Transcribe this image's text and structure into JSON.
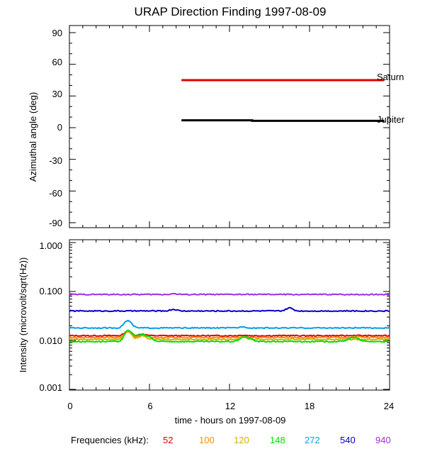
{
  "chart_data": [
    {
      "type": "line",
      "title": "URAP Direction Finding  1997-08-09",
      "ylabel": "Azimuthal angle (deg)",
      "xlim": [
        0,
        24
      ],
      "ylim": [
        -95,
        95
      ],
      "yticks": [
        90,
        60,
        30,
        0,
        -30,
        -60,
        -90
      ],
      "ytick_labels": [
        "90",
        "60",
        "30",
        "0",
        "-30",
        "-60",
        "-90"
      ],
      "series": [
        {
          "name": "Saturn",
          "color": "#e00000",
          "x": [
            8.4,
            23.6
          ],
          "y": [
            45,
            45
          ]
        },
        {
          "name": "Jupiter",
          "color": "#000000",
          "x": [
            8.4,
            13.7,
            13.7,
            23.6
          ],
          "y": [
            7,
            7,
            6.5,
            6.5
          ]
        }
      ]
    },
    {
      "type": "line",
      "scale": "log",
      "ylabel": "Intensity (microvolt/sqrt(Hz))",
      "xlabel": "time - hours on 1997-08-09",
      "xlim": [
        0,
        24
      ],
      "xticks": [
        0,
        6,
        12,
        18,
        24
      ],
      "xtick_labels": [
        "0",
        "6",
        "12",
        "18",
        "24"
      ],
      "ylim": [
        0.001,
        1.2
      ],
      "yticks": [
        1.0,
        0.1,
        0.01,
        0.001
      ],
      "ytick_labels": [
        "1.000",
        "0.100",
        "0.010",
        "0.001"
      ],
      "series": [
        {
          "name": "52",
          "color": "#e00000",
          "level": 0.0125,
          "features": [
            [
              4.4,
              0.0155
            ],
            [
              5.5,
              0.0135
            ],
            [
              13,
              0.0128
            ],
            [
              16.5,
              0.0126
            ],
            [
              21.5,
              0.0127
            ]
          ]
        },
        {
          "name": "100",
          "color": "#ff8c00",
          "level": 0.0115,
          "features": [
            [
              4.4,
              0.015
            ],
            [
              5.5,
              0.013
            ],
            [
              21.5,
              0.0121
            ]
          ]
        },
        {
          "name": "120",
          "color": "#d4b000",
          "level": 0.0105,
          "features": [
            [
              4.4,
              0.0155
            ],
            [
              5.5,
              0.0125
            ],
            [
              13,
              0.0118
            ]
          ]
        },
        {
          "name": "148",
          "color": "#00e000",
          "level": 0.0095,
          "features": [
            [
              4.4,
              0.016
            ],
            [
              5.0,
              0.012
            ],
            [
              5.5,
              0.0125
            ],
            [
              6.0,
              0.0115
            ],
            [
              13,
              0.0115
            ],
            [
              13.5,
              0.011
            ],
            [
              21,
              0.0108
            ],
            [
              21.5,
              0.0112
            ]
          ]
        },
        {
          "name": "272",
          "color": "#00a0e8",
          "level": 0.018,
          "features": [
            [
              4.3,
              0.023
            ],
            [
              4.5,
              0.021
            ],
            [
              13,
              0.019
            ]
          ]
        },
        {
          "name": "540",
          "color": "#0000c8",
          "level": 0.04,
          "features": [
            [
              7.8,
              0.043
            ],
            [
              16.5,
              0.046
            ]
          ]
        },
        {
          "name": "940",
          "color": "#9a30e0",
          "level": 0.087,
          "features": [
            [
              7.8,
              0.09
            ]
          ]
        }
      ]
    }
  ],
  "legend": {
    "title": "Frequencies (kHz):"
  }
}
